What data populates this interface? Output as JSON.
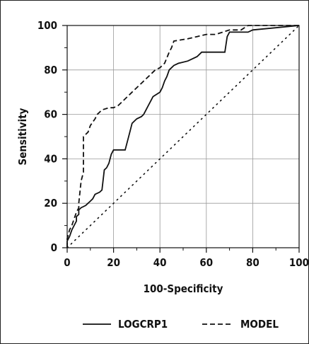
{
  "chart_data": {
    "type": "line",
    "xlabel": "100-Specificity",
    "ylabel": "Sensitivity",
    "xlim": [
      0,
      100
    ],
    "ylim": [
      0,
      100
    ],
    "x_ticks": [
      "0",
      "20",
      "40",
      "60",
      "80",
      "100"
    ],
    "y_ticks": [
      "0",
      "20",
      "40",
      "60",
      "80",
      "100"
    ],
    "grid": true,
    "legend_position": "bottom",
    "series": [
      {
        "name": "LOGCRP1",
        "line_style": "solid",
        "points": [
          [
            0,
            0
          ],
          [
            0,
            3
          ],
          [
            1,
            5
          ],
          [
            2,
            8
          ],
          [
            3,
            10
          ],
          [
            4,
            12
          ],
          [
            4,
            14
          ],
          [
            5,
            15
          ],
          [
            5,
            17
          ],
          [
            6,
            18
          ],
          [
            8,
            19
          ],
          [
            9,
            20
          ],
          [
            10,
            21
          ],
          [
            11,
            22
          ],
          [
            12,
            24
          ],
          [
            14,
            25
          ],
          [
            15,
            26
          ],
          [
            16,
            35
          ],
          [
            17,
            36
          ],
          [
            18,
            38
          ],
          [
            19,
            42
          ],
          [
            20,
            44
          ],
          [
            25,
            44
          ],
          [
            26,
            48
          ],
          [
            27,
            52
          ],
          [
            28,
            56
          ],
          [
            30,
            58
          ],
          [
            32,
            59
          ],
          [
            33,
            60
          ],
          [
            34,
            62
          ],
          [
            35,
            64
          ],
          [
            36,
            66
          ],
          [
            37,
            68
          ],
          [
            40,
            70
          ],
          [
            41,
            72
          ],
          [
            42,
            75
          ],
          [
            43,
            77
          ],
          [
            44,
            80
          ],
          [
            46,
            82
          ],
          [
            48,
            83
          ],
          [
            52,
            84
          ],
          [
            56,
            86
          ],
          [
            58,
            88
          ],
          [
            68,
            88
          ],
          [
            69,
            95
          ],
          [
            70,
            97
          ],
          [
            78,
            97
          ],
          [
            80,
            98
          ],
          [
            100,
            100
          ]
        ]
      },
      {
        "name": "MODEL",
        "line_style": "dashed",
        "points": [
          [
            0,
            0
          ],
          [
            0,
            4
          ],
          [
            1,
            8
          ],
          [
            2,
            10
          ],
          [
            3,
            13
          ],
          [
            4,
            16
          ],
          [
            5,
            18
          ],
          [
            5,
            20
          ],
          [
            6,
            30
          ],
          [
            7,
            34
          ],
          [
            7,
            50
          ],
          [
            9,
            52
          ],
          [
            10,
            55
          ],
          [
            12,
            58
          ],
          [
            13,
            60
          ],
          [
            15,
            62
          ],
          [
            18,
            63
          ],
          [
            20,
            63
          ],
          [
            22,
            64
          ],
          [
            24,
            66
          ],
          [
            26,
            68
          ],
          [
            28,
            70
          ],
          [
            30,
            72
          ],
          [
            32,
            74
          ],
          [
            34,
            76
          ],
          [
            36,
            78
          ],
          [
            38,
            80
          ],
          [
            40,
            81
          ],
          [
            42,
            83
          ],
          [
            44,
            88
          ],
          [
            45,
            90
          ],
          [
            46,
            93
          ],
          [
            52,
            94
          ],
          [
            56,
            95
          ],
          [
            60,
            96
          ],
          [
            64,
            96
          ],
          [
            70,
            98
          ],
          [
            75,
            98
          ],
          [
            78,
            100
          ],
          [
            100,
            100
          ]
        ]
      },
      {
        "name": "",
        "line_style": "dotted",
        "points": [
          [
            0,
            0
          ],
          [
            100,
            100
          ]
        ]
      }
    ]
  }
}
